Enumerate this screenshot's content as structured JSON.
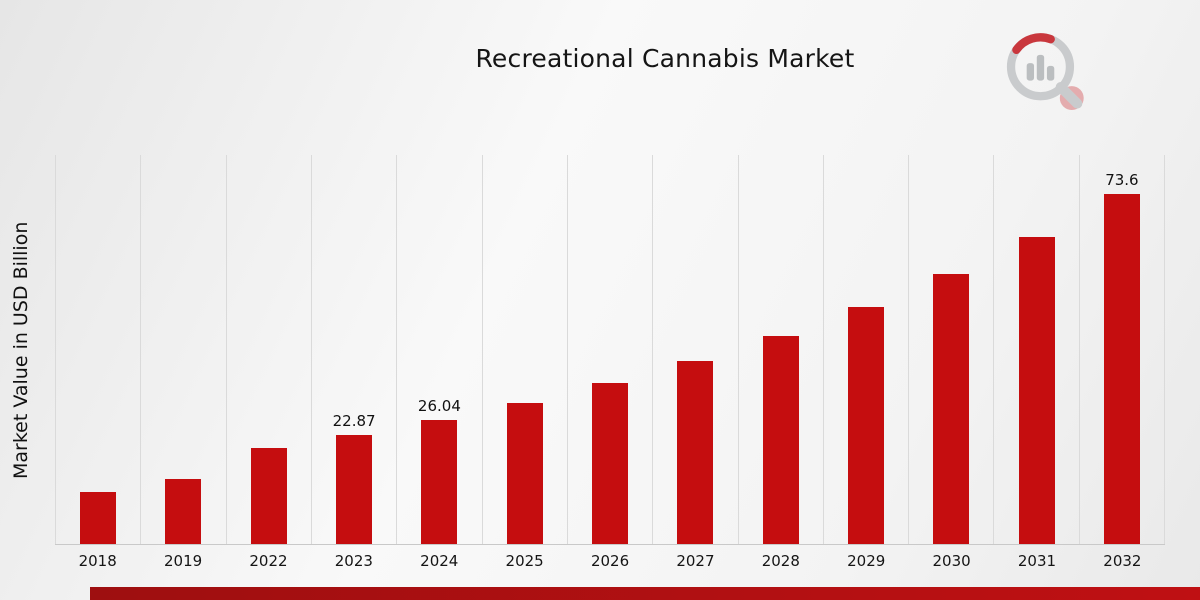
{
  "page": {
    "title": "Recreational Cannabis Market"
  },
  "chart_data": {
    "type": "bar",
    "title": "Recreational Cannabis Market",
    "xlabel": "",
    "ylabel": "Market Value in USD Billion",
    "categories": [
      "2018",
      "2019",
      "2022",
      "2023",
      "2024",
      "2025",
      "2026",
      "2027",
      "2028",
      "2029",
      "2030",
      "2031",
      "2032"
    ],
    "values": [
      11.0,
      13.7,
      20.1,
      22.87,
      26.04,
      29.7,
      33.8,
      38.5,
      43.8,
      49.9,
      56.8,
      64.6,
      73.6
    ],
    "value_labels": [
      "",
      "",
      "",
      "22.87",
      "26.04",
      "",
      "",
      "",
      "",
      "",
      "",
      "",
      "73.6"
    ],
    "ylim": [
      0,
      82
    ],
    "bar_color": "#c50d0f",
    "grid": "vertical-only",
    "legend": "none"
  },
  "branding": {
    "logo_icon": "magnifier-bar-chart-logo",
    "accent_color": "#b5120f"
  }
}
